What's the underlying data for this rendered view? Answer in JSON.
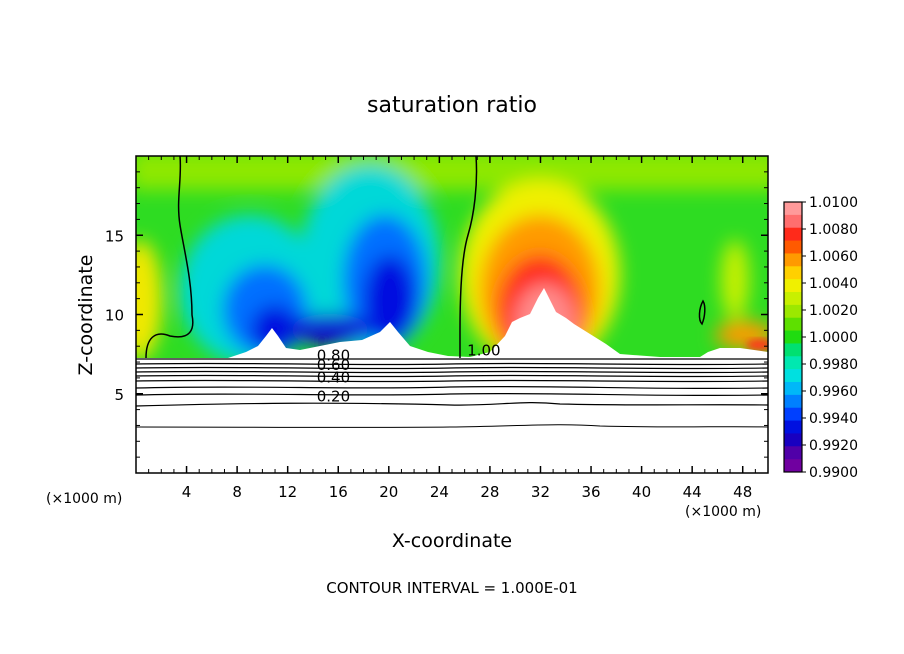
{
  "chart_data": {
    "type": "heatmap",
    "title": "saturation ratio",
    "xlabel": "X-coordinate",
    "ylabel": "Z-coordinate",
    "x_unit_left": "(×1000 m)",
    "x_unit_right": "(×1000 m)",
    "footer": "CONTOUR INTERVAL = 1.000E-01",
    "xlim": [
      0,
      50
    ],
    "ylim": [
      0,
      20
    ],
    "xticks": [
      4,
      8,
      12,
      16,
      20,
      24,
      28,
      32,
      36,
      40,
      44,
      48
    ],
    "xtick_labels": [
      "4",
      "8",
      "12",
      "16",
      "20",
      "24",
      "28",
      "32",
      "36",
      "40",
      "44",
      "48"
    ],
    "yticks": [
      5,
      10,
      15
    ],
    "ytick_labels": [
      "5",
      "10",
      "15"
    ],
    "colorbar": {
      "labels": [
        "1.0100",
        "1.0080",
        "1.0060",
        "1.0040",
        "1.0020",
        "1.0000",
        "0.9980",
        "0.9960",
        "0.9940",
        "0.9920",
        "0.9900"
      ],
      "colors": [
        "#ff9a9a",
        "#ff6e6e",
        "#ff2a1a",
        "#ff5a00",
        "#ff9a00",
        "#ffd000",
        "#f0f000",
        "#c8f000",
        "#9ce800",
        "#5ee000",
        "#20dc10",
        "#00e070",
        "#00e8b0",
        "#00e0e0",
        "#00b8f8",
        "#0080ff",
        "#0040ff",
        "#0010e0",
        "#1800c0",
        "#5000a8",
        "#7000a0"
      ]
    },
    "contour_labels": [
      {
        "text": "0.80",
        "x": 14.3,
        "y": 7.1
      },
      {
        "text": "0.60",
        "x": 14.3,
        "y": 6.5
      },
      {
        "text": "0.40",
        "x": 14.3,
        "y": 5.7
      },
      {
        "text": "0.20",
        "x": 14.3,
        "y": 4.5
      },
      {
        "text": "1.00",
        "x": 26.2,
        "y": 7.4
      }
    ]
  }
}
